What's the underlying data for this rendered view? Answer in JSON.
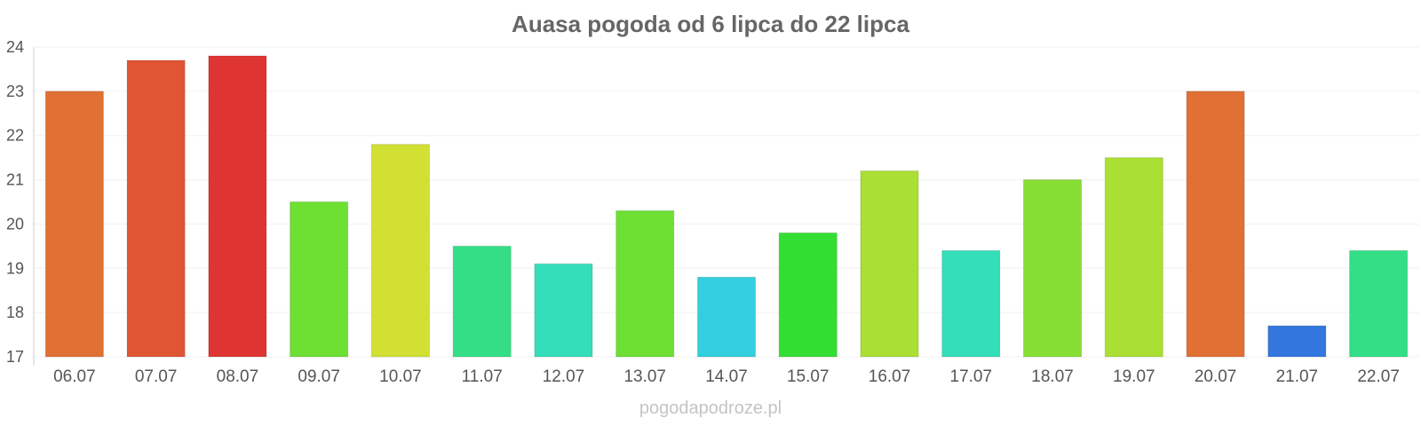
{
  "watermark": "pogodapodroze.pl",
  "chart_data": {
    "type": "bar",
    "title": "Auasa pogoda od 6 lipca do 22 lipca",
    "xlabel": "",
    "ylabel": "",
    "ylim": [
      17,
      24
    ],
    "yticks": [
      17,
      18,
      19,
      20,
      21,
      22,
      23,
      24
    ],
    "grid": true,
    "categories": [
      "06.07",
      "07.07",
      "08.07",
      "09.07",
      "10.07",
      "11.07",
      "12.07",
      "13.07",
      "14.07",
      "15.07",
      "16.07",
      "17.07",
      "18.07",
      "19.07",
      "20.07",
      "21.07",
      "22.07"
    ],
    "values": [
      23.0,
      23.7,
      23.8,
      20.5,
      21.8,
      19.5,
      19.1,
      20.3,
      18.8,
      19.8,
      21.2,
      19.4,
      21.0,
      21.5,
      23.0,
      17.7,
      19.4
    ],
    "colors": [
      "#e07033",
      "#e05533",
      "#de3533",
      "#6de033",
      "#d1e033",
      "#33de87",
      "#33deb9",
      "#6de033",
      "#33cfde",
      "#33de33",
      "#aadf33",
      "#33deb9",
      "#86de33",
      "#aadf33",
      "#e07033",
      "#3377de",
      "#33de87"
    ]
  }
}
